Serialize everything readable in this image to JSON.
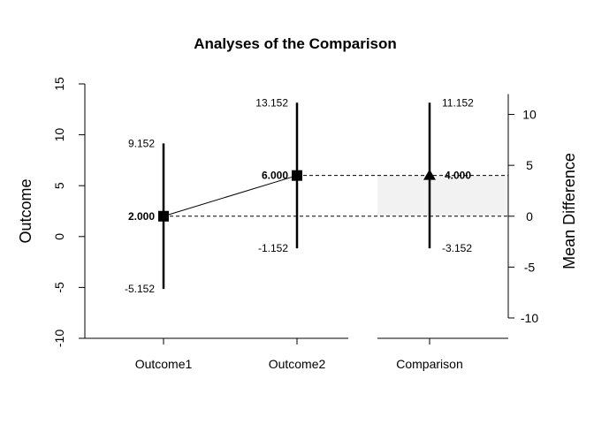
{
  "chart_data": {
    "type": "interval",
    "title": "Analyses of the Comparison",
    "left_axis": {
      "label": "Outcome",
      "ylim": [
        -10,
        15
      ],
      "ticks": [
        -10,
        -5,
        0,
        5,
        10,
        15
      ]
    },
    "right_axis": {
      "label": "Mean Difference",
      "ylim": [
        -10,
        12
      ],
      "ticks": [
        -10,
        -5,
        0,
        5,
        10
      ]
    },
    "categories": [
      "Outcome1",
      "Outcome2",
      "Comparison"
    ],
    "points": [
      {
        "category": "Outcome1",
        "estimate": 2.0,
        "lower": -5.152,
        "upper": 9.152,
        "estimate_label": "2.000",
        "lower_label": "-5.152",
        "upper_label": "9.152",
        "marker": "square"
      },
      {
        "category": "Outcome2",
        "estimate": 6.0,
        "lower": -1.152,
        "upper": 13.152,
        "estimate_label": "6.000",
        "lower_label": "-1.152",
        "upper_label": "13.152",
        "marker": "square"
      },
      {
        "category": "Comparison",
        "estimate": 4.0,
        "lower": -3.152,
        "upper": 11.152,
        "estimate_label": "4.000",
        "lower_label": "-3.152",
        "upper_label": "11.152",
        "marker": "triangle",
        "scale": "difference"
      }
    ],
    "reference_lines": [
      2.0,
      6.0
    ],
    "shaded_region": [
      0,
      4
    ],
    "grid": false,
    "colors": {
      "line": "#000000",
      "shade": "#f2f2f2",
      "background": "#ffffff"
    }
  }
}
